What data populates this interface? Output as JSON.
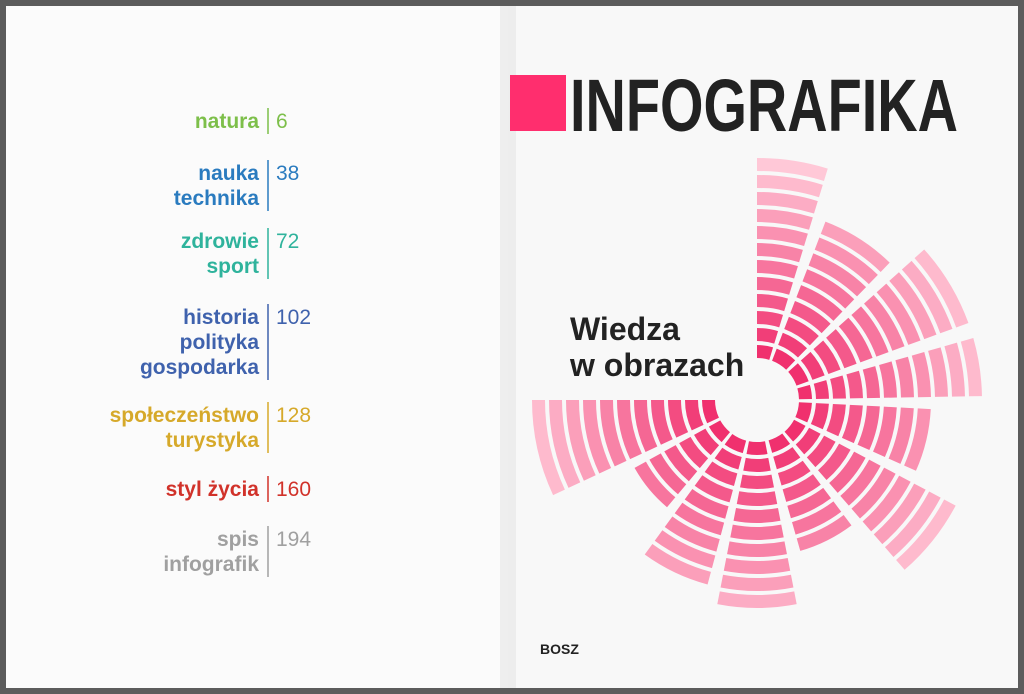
{
  "left_page": {
    "contents": [
      {
        "lines": [
          "natura"
        ],
        "page": 6,
        "color": "#7dbf4a"
      },
      {
        "lines": [
          "nauka",
          "technika"
        ],
        "page": 38,
        "color": "#2a7bbf"
      },
      {
        "lines": [
          "zdrowie",
          "sport"
        ],
        "page": 72,
        "color": "#2fb39c"
      },
      {
        "lines": [
          "historia",
          "polityka",
          "gospodarka"
        ],
        "page": 102,
        "color": "#3f62ad"
      },
      {
        "lines": [
          "społeczeństwo",
          "turystyka"
        ],
        "page": 128,
        "color": "#d6a92a"
      },
      {
        "lines": [
          "styl życia"
        ],
        "page": 160,
        "color": "#d1322a"
      },
      {
        "lines": [
          "spis",
          "infografik"
        ],
        "page": 194,
        "color": "#a0a0a0"
      }
    ]
  },
  "right_page": {
    "title": "INFOGRAFIKA",
    "subtitle": [
      "Wiedza",
      "w obrazach"
    ],
    "publisher": "BOSZ"
  }
}
